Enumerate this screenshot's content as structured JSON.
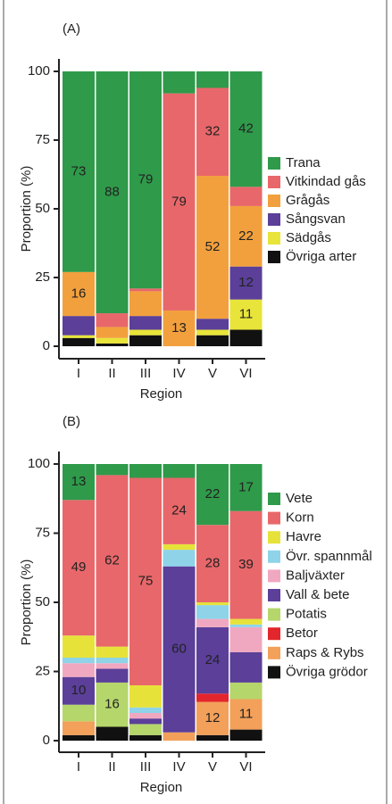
{
  "chart_data": [
    {
      "type": "stacked-bar",
      "title": "(A)",
      "x_label": "Region",
      "y_label": "Proportion (%)",
      "categories": [
        "I",
        "II",
        "III",
        "IV",
        "V",
        "VI"
      ],
      "ylim": [
        0,
        100
      ],
      "yticks": [
        0,
        25,
        50,
        75,
        100
      ],
      "series": [
        {
          "name": "Övriga arter",
          "color": "#111111",
          "values": [
            3,
            1,
            4,
            0,
            4,
            6
          ],
          "value_labels": [
            null,
            null,
            null,
            null,
            null,
            null
          ]
        },
        {
          "name": "Sädgås",
          "color": "#e8e43a",
          "values": [
            1,
            2,
            2,
            0,
            2,
            11
          ],
          "value_labels": [
            null,
            null,
            null,
            null,
            null,
            "11"
          ]
        },
        {
          "name": "Sångsvan",
          "color": "#5b3f99",
          "values": [
            7,
            0,
            5,
            0,
            4,
            12
          ],
          "value_labels": [
            null,
            null,
            null,
            null,
            null,
            "12"
          ]
        },
        {
          "name": "Grågås",
          "color": "#f2a03d",
          "values": [
            16,
            4,
            9,
            13,
            52,
            22
          ],
          "value_labels": [
            "16",
            null,
            null,
            "13",
            "52",
            "22"
          ]
        },
        {
          "name": "Vitkindad gås",
          "color": "#e8676a",
          "values": [
            0,
            5,
            1,
            79,
            32,
            7
          ],
          "value_labels": [
            null,
            null,
            null,
            "79",
            "32",
            null
          ]
        },
        {
          "name": "Trana",
          "color": "#2f9a4a",
          "values": [
            73,
            88,
            79,
            8,
            6,
            42
          ],
          "value_labels": [
            "73",
            "88",
            "79",
            null,
            null,
            "42"
          ]
        }
      ]
    },
    {
      "type": "stacked-bar",
      "title": "(B)",
      "x_label": "Region",
      "y_label": "Proportion (%)",
      "categories": [
        "I",
        "II",
        "III",
        "IV",
        "V",
        "VI"
      ],
      "ylim": [
        0,
        100
      ],
      "yticks": [
        0,
        25,
        50,
        75,
        100
      ],
      "series": [
        {
          "name": "Övriga grödor",
          "color": "#111111",
          "values": [
            2,
            5,
            2,
            0,
            2,
            4
          ],
          "value_labels": [
            null,
            null,
            null,
            null,
            null,
            null
          ]
        },
        {
          "name": "Raps & Rybs",
          "color": "#f2a05a",
          "values": [
            5,
            0,
            0,
            3,
            12,
            11
          ],
          "value_labels": [
            null,
            null,
            null,
            null,
            "12",
            "11"
          ]
        },
        {
          "name": "Betor",
          "color": "#e3262c",
          "values": [
            0,
            0,
            0,
            0,
            3,
            0
          ],
          "value_labels": [
            null,
            null,
            null,
            null,
            null,
            null
          ]
        },
        {
          "name": "Potatis",
          "color": "#b5d66b",
          "values": [
            6,
            16,
            4,
            0,
            0,
            6
          ],
          "value_labels": [
            null,
            "16",
            null,
            null,
            null,
            null
          ]
        },
        {
          "name": "Vall & bete",
          "color": "#5b3f99",
          "values": [
            10,
            5,
            2,
            60,
            24,
            11
          ],
          "value_labels": [
            "10",
            null,
            null,
            "60",
            "24",
            null
          ]
        },
        {
          "name": "Baljväxter",
          "color": "#f0a8c0",
          "values": [
            5,
            2,
            2,
            0,
            3,
            9
          ],
          "value_labels": [
            null,
            null,
            null,
            null,
            null,
            null
          ]
        },
        {
          "name": "Övr. spannmål",
          "color": "#8fd3e8",
          "values": [
            2,
            2,
            2,
            6,
            5,
            1
          ],
          "value_labels": [
            null,
            null,
            null,
            null,
            null,
            null
          ]
        },
        {
          "name": "Havre",
          "color": "#e6e23a",
          "values": [
            8,
            4,
            8,
            2,
            1,
            2
          ],
          "value_labels": [
            null,
            null,
            null,
            null,
            null,
            null
          ]
        },
        {
          "name": "Korn",
          "color": "#e8676a",
          "values": [
            49,
            62,
            75,
            24,
            28,
            39
          ],
          "value_labels": [
            "49",
            "62",
            "75",
            "24",
            "28",
            "39"
          ]
        },
        {
          "name": "Vete",
          "color": "#2f9a4a",
          "values": [
            13,
            4,
            5,
            5,
            22,
            17
          ],
          "value_labels": [
            "13",
            null,
            null,
            null,
            "22",
            "17"
          ]
        }
      ]
    }
  ]
}
